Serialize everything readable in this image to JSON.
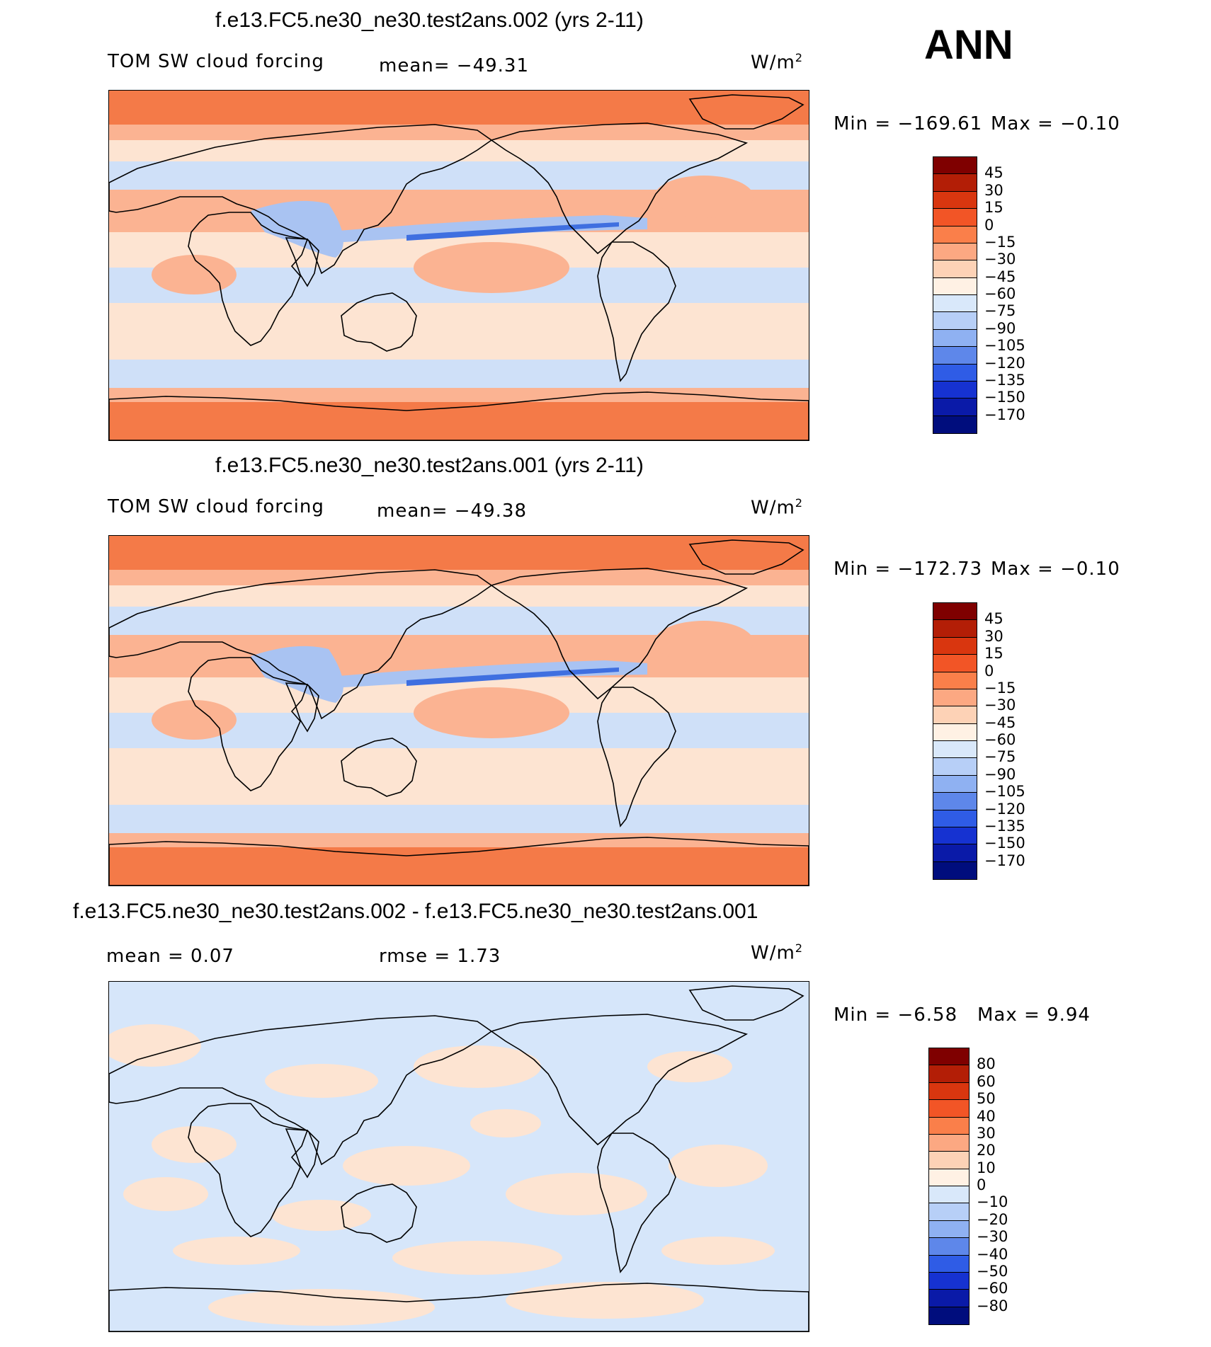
{
  "season": "ANN",
  "units_label": "W/m",
  "units_sup": "2",
  "panels": [
    {
      "title": "f.e13.FC5.ne30_ne30.test2ans.002 (yrs 2-11)",
      "variable": "TOM SW cloud forcing",
      "mean": "mean= −49.31",
      "min": "Min = −169.61",
      "max": "Max =  −0.10",
      "levels": [
        "45",
        "30",
        "15",
        "0",
        "−15",
        "−30",
        "−45",
        "−60",
        "−75",
        "−90",
        "−105",
        "−120",
        "−135",
        "−150",
        "−170"
      ]
    },
    {
      "title": "f.e13.FC5.ne30_ne30.test2ans.001 (yrs 2-11)",
      "variable": "TOM SW cloud forcing",
      "mean": "mean= −49.38",
      "min": "Min = −172.73",
      "max": "Max =  −0.10",
      "levels": [
        "45",
        "30",
        "15",
        "0",
        "−15",
        "−30",
        "−45",
        "−60",
        "−75",
        "−90",
        "−105",
        "−120",
        "−135",
        "−150",
        "−170"
      ]
    },
    {
      "title": "f.e13.FC5.ne30_ne30.test2ans.002 - f.e13.FC5.ne30_ne30.test2ans.001",
      "mean": "mean =    0.07",
      "rmse": "rmse =    1.73",
      "min": "Min =   −6.58",
      "max": "Max =    9.94",
      "levels": [
        "80",
        "60",
        "50",
        "40",
        "30",
        "20",
        "10",
        "0",
        "−10",
        "−20",
        "−30",
        "−40",
        "−50",
        "−60",
        "−80"
      ]
    }
  ],
  "colors": {
    "cbar16": [
      "#7f0000",
      "#b31e06",
      "#d9360f",
      "#f25526",
      "#fa7f4a",
      "#fca882",
      "#fdd2b6",
      "#fff1e4",
      "#d9e8fa",
      "#b7cff7",
      "#8fb1f2",
      "#5e87ea",
      "#2f5ce6",
      "#1632d1",
      "#0a1aa8",
      "#000d7d"
    ],
    "cbar_diff": [
      "#7f0000",
      "#b31e06",
      "#d9360f",
      "#f25526",
      "#fa7f4a",
      "#fca882",
      "#fdd2b6",
      "#fff1e4",
      "#d9e8fa",
      "#b7cff7",
      "#8fb1f2",
      "#5e87ea",
      "#2f5ce6",
      "#1632d1",
      "#0a1aa8",
      "#000d7d"
    ],
    "polar": "#f47a48",
    "subtrop": "#fbb392",
    "tropics": "#fde4d2",
    "storm": "#cfe0f8",
    "storm_dark": "#a9c3f2",
    "itcz": "#3f6fe0",
    "diff_pos": "#fde4d2",
    "diff_neg": "#d6e6fa"
  }
}
